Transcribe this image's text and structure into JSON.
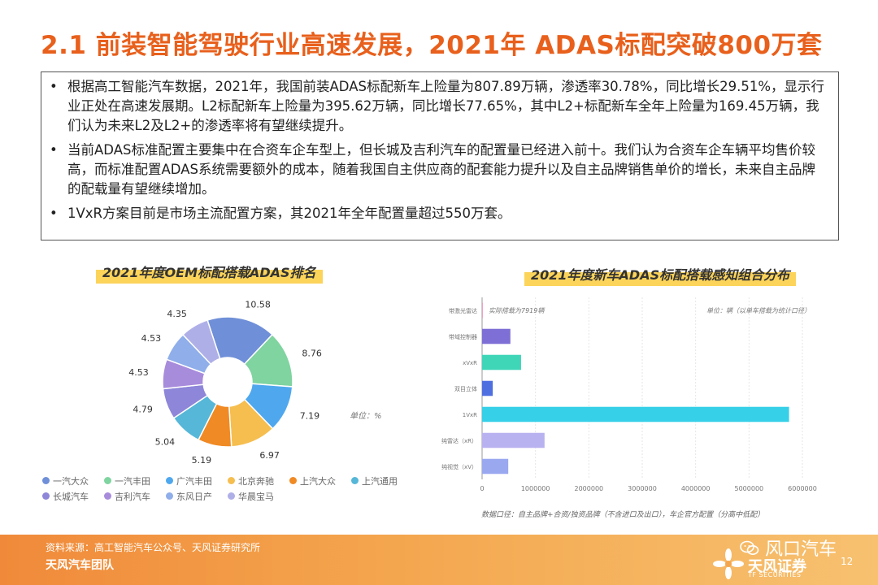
{
  "title": "2.1 前装智能驾驶行业高速发展，2021年 ADAS标配突破800万套",
  "bullets": [
    "根据高工智能汽车数据，2021年，我国前装ADAS标配新车上险量为807.89万辆，渗透率30.78%，同比增长29.51%，显示行业正处在高速发展期。L2标配新车上险量为395.62万辆，同比增长77.65%，其中L2+标配新车全年上险量为169.45万辆，我们认为未来L2及L2+的渗透率将有望继续提升。",
    "当前ADAS标准配置主要集中在合资车企车型上，但长城及吉利汽车的配置量已经进入前十。我们认为合资车企车辆平均售价较高，而标准配置ADAS系统需要额外的成本，随着我国自主供应商的配套能力提升以及自主品牌销售单价的增长，未来自主品牌的配载量有望继续增加。",
    "1VxR方案目前是市场主流配置方案，其2021年全年配置量超过550万套。"
  ],
  "chart_data": [
    {
      "type": "pie",
      "title": "2021年度OEM标配搭载ADAS排名",
      "unit_label": "单位：%",
      "categories": [
        "一汽大众",
        "一汽丰田",
        "广汽丰田",
        "北京奔驰",
        "上汽大众",
        "上汽通用",
        "长城汽车",
        "吉利汽车",
        "东风日产",
        "华晨宝马"
      ],
      "values": [
        10.58,
        8.76,
        7.19,
        6.97,
        5.19,
        5.04,
        4.79,
        4.53,
        4.53,
        4.35
      ],
      "value_labels": [
        "10.58",
        "8.76",
        "7.19",
        "6.97",
        "5.19",
        "5.04",
        "4.79",
        "4.53",
        "4.53",
        "4.35"
      ],
      "colors": [
        "#6F8FD8",
        "#7FD4A0",
        "#4FA8EE",
        "#F5BE4F",
        "#F08A24",
        "#56B7D8",
        "#8E86D8",
        "#A88CDC",
        "#8FAEEA",
        "#AFAFE8"
      ],
      "legend_position": "bottom"
    },
    {
      "type": "bar",
      "orientation": "horizontal",
      "title": "2021年度新车ADAS标配搭载感知组合分布",
      "unit_label": "单位：辆（以单车搭载为统计口径）",
      "annotation": "实际搭载为7919辆",
      "categories": [
        "带激光雷达",
        "带域控制器",
        "xVxR",
        "双目立体",
        "1VxR",
        "纯雷达（xR）",
        "纯视觉（xV）"
      ],
      "values": [
        7919,
        530000,
        730000,
        200000,
        5750000,
        1170000,
        490000
      ],
      "colors": [
        "#F0A0C0",
        "#7E6FD6",
        "#3FD6B8",
        "#4F6FE0",
        "#36D0E8",
        "#B9B2F0",
        "#9AA8F0"
      ],
      "xlim": [
        0,
        6000000
      ],
      "xticks": [
        "0",
        "1000000",
        "2000000",
        "3000000",
        "4000000",
        "5000000",
        "6000000"
      ],
      "grid": true,
      "footnote": "数据口径：自主品牌+合资/独资品牌（不含进口及出口），车企官方配置（分高中低配）"
    }
  ],
  "footer": {
    "source": "资料来源：高工智能汽车公众号、天风证券研究所",
    "team": "天风汽车团队",
    "wechat": "风口汽车",
    "brand_cn": "天风证券",
    "brand_en": "TF SECURITIES",
    "page": "12",
    "wechat_icon": "wechat-icon",
    "logo_icon": "flower-logo-icon"
  }
}
